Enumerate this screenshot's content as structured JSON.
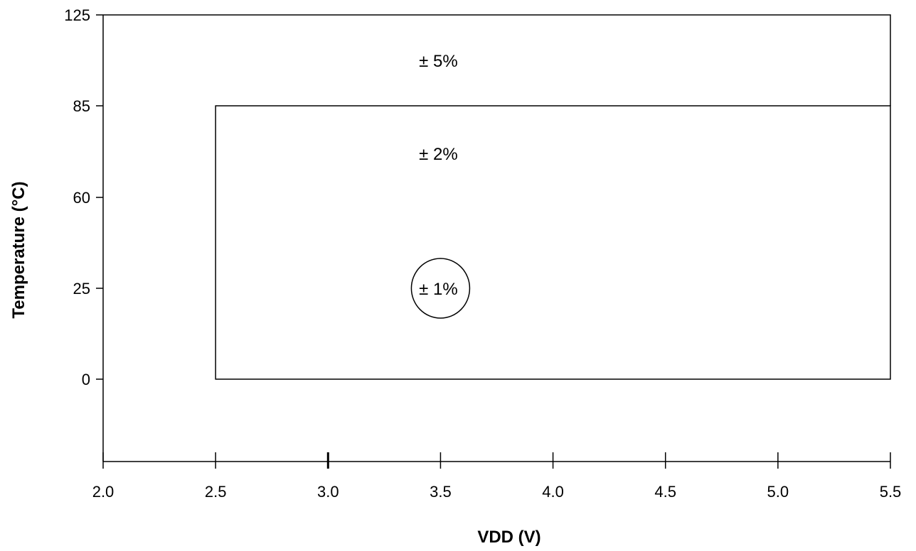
{
  "chart_data": {
    "type": "region",
    "xlabel": "VDD (V)",
    "ylabel": "Temperature (°C)",
    "xlim": [
      2.0,
      5.5
    ],
    "x_ticks": [
      2.0,
      2.5,
      3.0,
      3.5,
      4.0,
      4.5,
      5.0,
      5.5
    ],
    "x_tick_labels": [
      "2.0",
      "2.5",
      "3.0",
      "3.5",
      "4.0",
      "4.5",
      "5.0",
      "5.5"
    ],
    "y_ticks": [
      125,
      85,
      60,
      25,
      0
    ],
    "y_tick_labels": [
      "125",
      "85",
      "60",
      "25",
      "0"
    ],
    "grid": false,
    "regions": [
      {
        "label": "± 5%",
        "shape": "rect",
        "x": [
          2.0,
          5.5
        ],
        "y_top": 125,
        "label_at": [
          3.5,
          105
        ]
      },
      {
        "label": "± 2%",
        "shape": "rect",
        "x": [
          2.5,
          5.5
        ],
        "y": [
          0,
          85
        ],
        "label_at": [
          3.5,
          72
        ]
      },
      {
        "label": "± 1%",
        "shape": "circle",
        "center": [
          3.5,
          25
        ],
        "label_at": [
          3.5,
          25
        ]
      }
    ]
  }
}
